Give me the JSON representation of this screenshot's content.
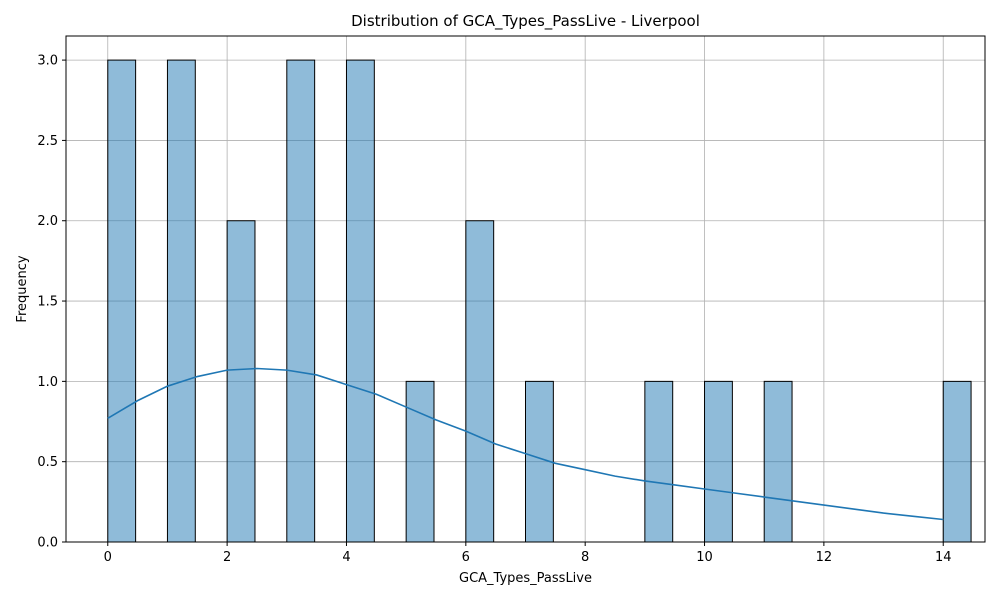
{
  "chart_data": {
    "type": "bar",
    "title": "Distribution of GCA_Types_PassLive - Liverpool",
    "xlabel": "GCA_Types_PassLive",
    "ylabel": "Frequency",
    "xlim": [
      -0.7,
      14.7
    ],
    "ylim": [
      0,
      3.15
    ],
    "xticks": [
      0,
      2,
      4,
      6,
      8,
      10,
      12,
      14
    ],
    "yticks": [
      0.0,
      0.5,
      1.0,
      1.5,
      2.0,
      2.5,
      3.0
    ],
    "xtick_labels": [
      "0",
      "2",
      "4",
      "6",
      "8",
      "10",
      "12",
      "14"
    ],
    "ytick_labels": [
      "0.0",
      "0.5",
      "1.0",
      "1.5",
      "2.0",
      "2.5",
      "3.0"
    ],
    "grid": true,
    "bin_width": 0.4667,
    "bins": [
      {
        "x": 0,
        "count": 3
      },
      {
        "x": 1,
        "count": 3
      },
      {
        "x": 2,
        "count": 2
      },
      {
        "x": 3,
        "count": 3
      },
      {
        "x": 4,
        "count": 3
      },
      {
        "x": 5,
        "count": 1
      },
      {
        "x": 6,
        "count": 2
      },
      {
        "x": 7,
        "count": 1
      },
      {
        "x": 9,
        "count": 1
      },
      {
        "x": 10,
        "count": 1
      },
      {
        "x": 11,
        "count": 1
      },
      {
        "x": 14,
        "count": 1
      }
    ],
    "kde": {
      "x": [
        0,
        0.5,
        1,
        1.5,
        2,
        2.5,
        3,
        3.5,
        4,
        4.5,
        5,
        5.5,
        6,
        6.5,
        7,
        7.5,
        8,
        8.5,
        9,
        9.5,
        10,
        10.5,
        11,
        11.5,
        12,
        12.5,
        13,
        13.5,
        14
      ],
      "y": [
        0.77,
        0.88,
        0.97,
        1.03,
        1.07,
        1.08,
        1.07,
        1.04,
        0.98,
        0.92,
        0.84,
        0.76,
        0.69,
        0.61,
        0.55,
        0.49,
        0.45,
        0.41,
        0.38,
        0.355,
        0.33,
        0.305,
        0.28,
        0.255,
        0.23,
        0.205,
        0.18,
        0.16,
        0.14
      ]
    },
    "colors": {
      "bar": "#1f77b4",
      "kde": "#1f77b4",
      "grid": "#b0b0b0"
    }
  }
}
